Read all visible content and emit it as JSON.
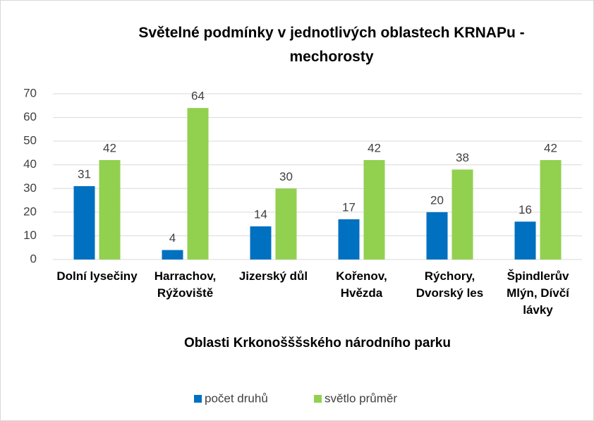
{
  "chart_data": {
    "type": "bar",
    "title": "Světelné podmínky v jednotlivých oblastech KRNAPu - mechorosty",
    "x_label": "Oblasti Krkonošššského národního parku",
    "categories": [
      "Dolní lysečiny",
      "Harrachov, Rýžoviště",
      "Jizerský důl",
      "Kořenov, Hvězda",
      "Rýchory, Dvorský les",
      "Špindlerův Mlýn, Dívčí lávky"
    ],
    "series": [
      {
        "name": "počet druhů",
        "color": "#0070c0",
        "values": [
          31,
          4,
          14,
          17,
          20,
          16
        ]
      },
      {
        "name": "světlo průměr",
        "color": "#92d050",
        "values": [
          42,
          64,
          30,
          42,
          38,
          42
        ]
      }
    ],
    "ylim": [
      0,
      70
    ],
    "yticks": [
      0,
      10,
      20,
      30,
      40,
      50,
      60,
      70
    ],
    "grid": true,
    "legend": "bottom"
  }
}
